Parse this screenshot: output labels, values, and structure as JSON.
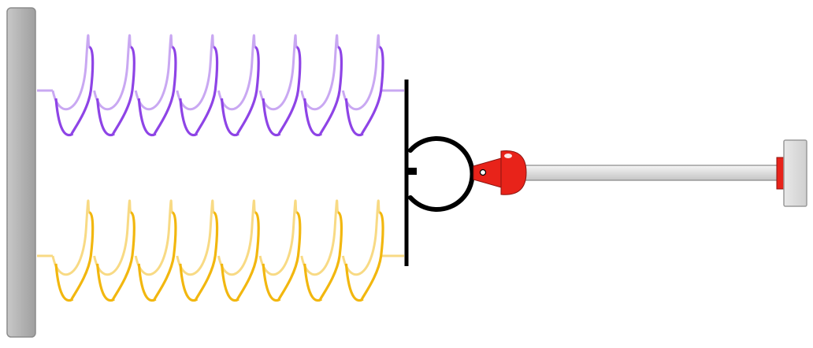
{
  "colors": {
    "wall_fill": "#b3b3b3",
    "wall_stroke": "#8c8c8c",
    "spring_top_front": "#8e44e6",
    "spring_top_back": "#c9a8f2",
    "spring_bottom_front": "#f2b70f",
    "spring_bottom_back": "#f8da84",
    "plate": "#000000",
    "hook": "#000000",
    "clamp_red": "#e8231a",
    "clamp_outline": "#8a1410",
    "rod_fill": "#e6e6e6",
    "rod_stroke": "#888888",
    "end_block_fill": "#dddddd",
    "end_block_stroke": "#9a9a9a"
  },
  "springs": [
    {
      "name": "top-spring",
      "coils": 8
    },
    {
      "name": "bottom-spring",
      "coils": 8
    }
  ]
}
